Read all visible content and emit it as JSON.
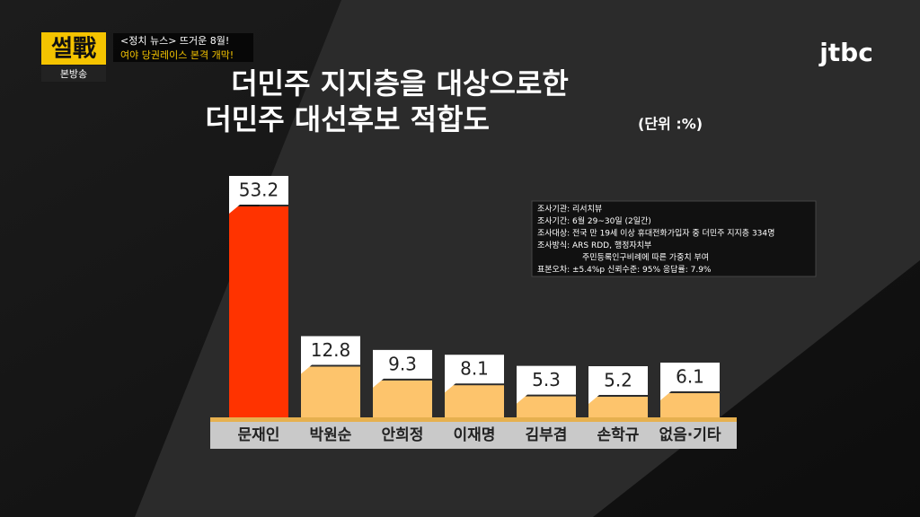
{
  "header": {
    "logo": "썰戰",
    "badge": "본방송",
    "news": [
      "<정치 뉴스> 뜨거운 8월!",
      "여야 당권레이스 본격 개막!"
    ],
    "channel": "jtbc"
  },
  "chart_data": {
    "type": "bar",
    "title": [
      "더민주 지지층을 대상으로한",
      "더민주 대선후보 적합도"
    ],
    "unit_note": "(단위 :%)",
    "categories": [
      "문재인",
      "박원순",
      "안희정",
      "이재명",
      "김부겸",
      "손학규",
      "없음·기타"
    ],
    "values": [
      53.2,
      12.8,
      9.3,
      8.1,
      5.3,
      5.2,
      6.1
    ],
    "colors": [
      "#ff3300",
      "#fdc46c",
      "#fdc46c",
      "#fdc46c",
      "#fdc46c",
      "#fdc46c",
      "#fdc46c"
    ],
    "annotations": [
      "조사기관: 리서치뷰",
      "조사기간: 6월 29~30일 (2일간)",
      "조사대상: 전국 만 19세 이상 휴대전화가입자 중 더민주 지지층 334명",
      "조사방식: ARS RDD, 행정자치부",
      "주민등록인구비례에 따른 가중치 부여",
      "표본오차: ±5.4%p     신뢰수준: 95%     응답률: 7.9%"
    ]
  }
}
